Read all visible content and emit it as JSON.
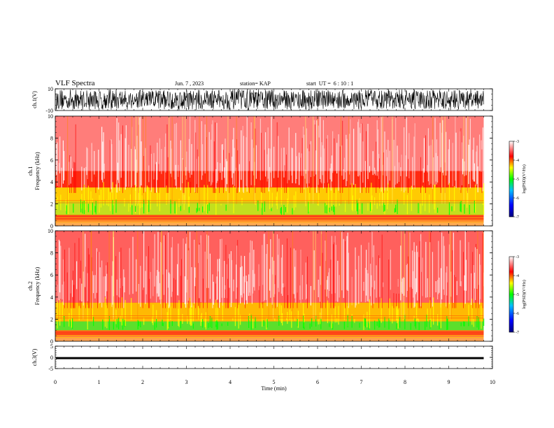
{
  "header": {
    "title": "VLF Spectra",
    "date": "Jun. 7 , 2023",
    "station": "station= KAP",
    "start": "start  UT =  6 : 10 : 1"
  },
  "chart_data": [
    {
      "type": "line",
      "name": "ch1-waveform",
      "ylabel": "ch.1(V)",
      "ylim": [
        -10,
        10
      ],
      "yticks": [
        "10",
        "-10"
      ],
      "xlim": [
        0,
        10
      ],
      "data_extent_min": [
        0,
        9.8
      ],
      "appearance": "dense black noise trace spanning nearly full range"
    },
    {
      "type": "heatmap",
      "name": "ch1-spectrogram",
      "ylabel": "ch.1\nFrequency (kHz)",
      "ylim": [
        0,
        10
      ],
      "yticks": [
        "0",
        "2",
        "4",
        "6",
        "8",
        "10"
      ],
      "xlim": [
        0,
        10
      ],
      "data_extent_min": [
        0,
        9.8
      ],
      "bands_khz": [
        {
          "from": 0,
          "to": 0.5,
          "level": "mixed"
        },
        {
          "from": 0.5,
          "to": 1.0,
          "level": "-4 to -3"
        },
        {
          "from": 1.0,
          "to": 2.2,
          "level": "-5 to -4"
        },
        {
          "from": 2.2,
          "to": 3.5,
          "level": "-4.5 to -4"
        },
        {
          "from": 3.5,
          "to": 5.0,
          "level": "-4 to -3.5"
        },
        {
          "from": 5.0,
          "to": 10.0,
          "level": "-3.5 to -3"
        }
      ]
    },
    {
      "type": "heatmap",
      "name": "ch2-spectrogram",
      "ylabel": "ch.2\nFrequency (kHz)",
      "ylim": [
        0,
        10
      ],
      "yticks": [
        "0",
        "2",
        "4",
        "6",
        "8",
        "10"
      ],
      "xlim": [
        0,
        10
      ],
      "data_extent_min": [
        0,
        9.8
      ],
      "bands_khz": [
        {
          "from": 0,
          "to": 0.5,
          "level": "mixed"
        },
        {
          "from": 0.5,
          "to": 1.0,
          "level": "-4 to -3"
        },
        {
          "from": 1.0,
          "to": 1.8,
          "level": "-5 to -4.5"
        },
        {
          "from": 1.8,
          "to": 3.5,
          "level": "-4.5 to -4"
        },
        {
          "from": 3.5,
          "to": 10.0,
          "level": "-4 to -3"
        }
      ]
    },
    {
      "type": "line",
      "name": "ch3-waveform",
      "ylabel": "ch.3(V)",
      "ylim": [
        -5,
        5
      ],
      "yticks": [
        "5",
        "0",
        "-5"
      ],
      "xlim": [
        0,
        10
      ],
      "data_extent_min": [
        0,
        9.8
      ],
      "trace_range": [
        -0.8,
        0.1
      ],
      "xlabel": "Time (min)",
      "xticks": [
        "0",
        "1",
        "2",
        "3",
        "4",
        "5",
        "6",
        "7",
        "8",
        "9",
        "10"
      ]
    }
  ],
  "colorbar": {
    "label": "log(PSD)(V²/Hz)",
    "ticks": [
      "-3",
      "-4",
      "-5",
      "-6",
      "-7"
    ],
    "range": [
      -7,
      -3
    ],
    "stops": [
      "#000080",
      "#0000ff",
      "#00bfff",
      "#00ff00",
      "#ffff00",
      "#ff0000",
      "#ffffff"
    ]
  }
}
